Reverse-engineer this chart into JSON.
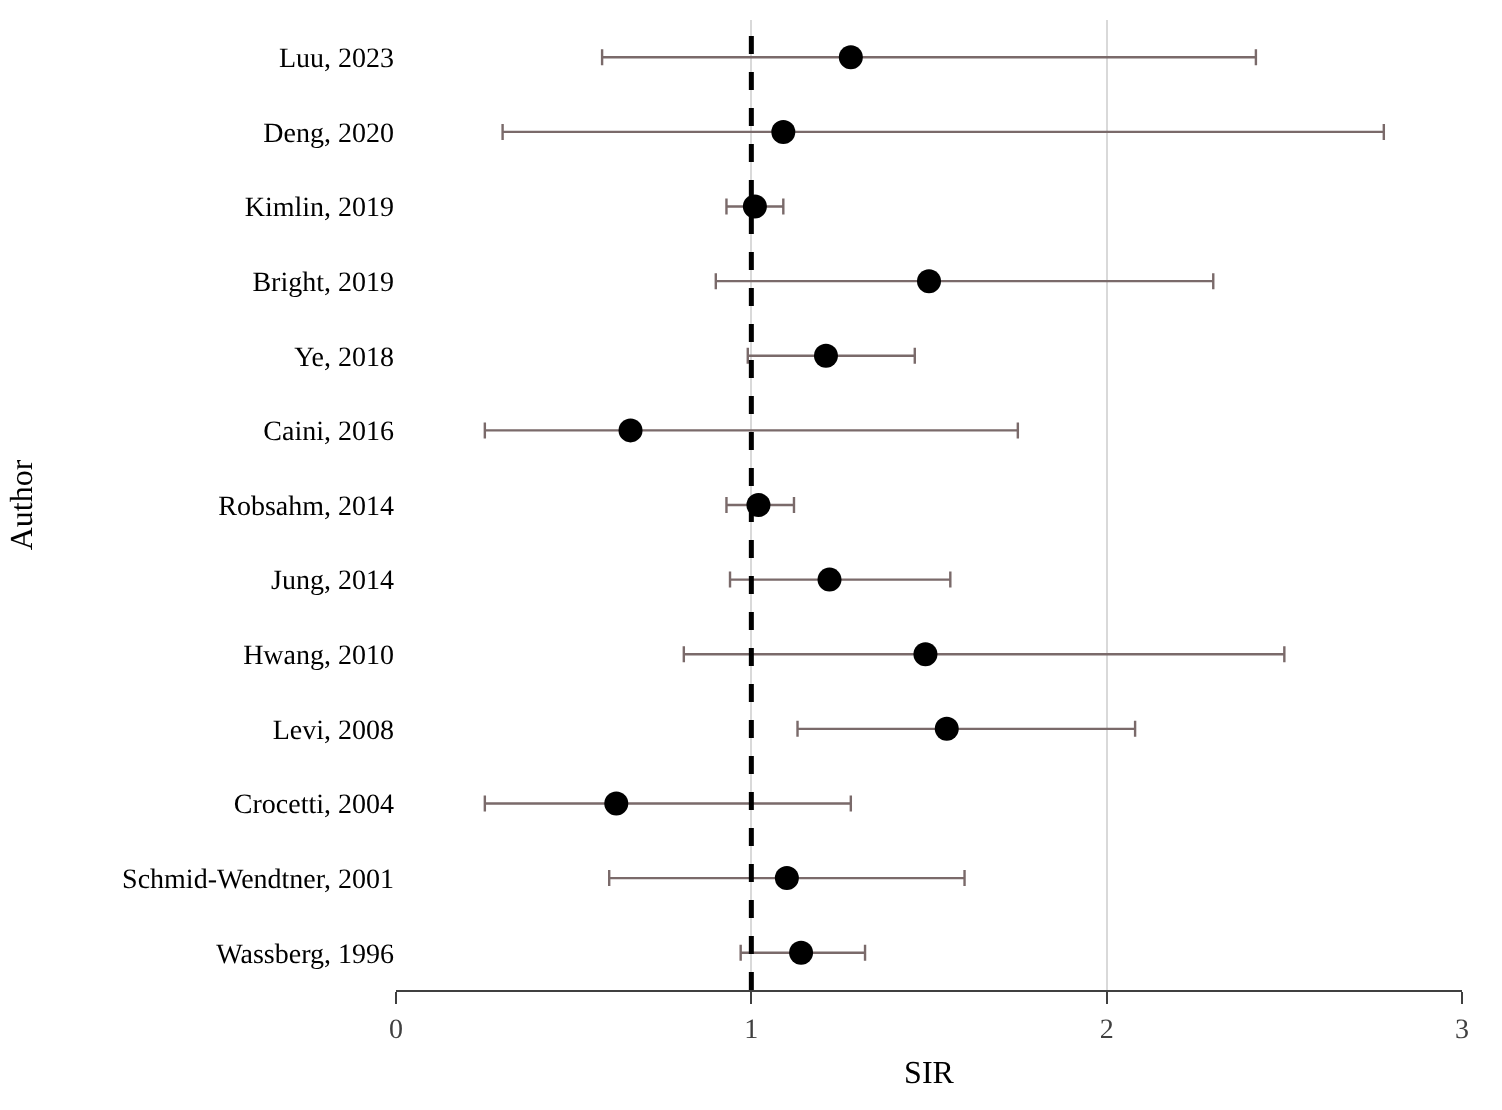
{
  "chart_data": {
    "type": "scatter",
    "orientation": "horizontal",
    "xlabel": "SIR",
    "ylabel": "Author",
    "categories": [
      "Luu, 2023",
      "Deng, 2020",
      "Kimlin, 2019",
      "Bright, 2019",
      "Ye, 2018",
      "Caini, 2016",
      "Robsahm, 2014",
      "Jung, 2014",
      "Hwang, 2010",
      "Levi, 2008",
      "Crocetti, 2004",
      "Schmid-Wendtner, 2001",
      "Wassberg, 1996"
    ],
    "series": [
      {
        "color": "#000000",
        "values": [
          1.28,
          1.09,
          1.01,
          1.5,
          1.21,
          0.66,
          1.02,
          1.22,
          1.49,
          1.55,
          0.62,
          1.1,
          1.14
        ],
        "errors": [
          [
            0.58,
            2.42
          ],
          [
            0.3,
            2.78
          ],
          [
            0.93,
            1.09
          ],
          [
            0.9,
            2.3
          ],
          [
            0.99,
            1.46
          ],
          [
            0.25,
            1.75
          ],
          [
            0.93,
            1.12
          ],
          [
            0.94,
            1.56
          ],
          [
            0.81,
            2.5
          ],
          [
            1.13,
            2.08
          ],
          [
            0.25,
            1.28
          ],
          [
            0.6,
            1.6
          ],
          [
            0.97,
            1.32
          ]
        ]
      }
    ],
    "xlim": [
      0,
      3
    ],
    "xticks": [
      0,
      1,
      2,
      3
    ],
    "grid": "x",
    "marker": "circle",
    "ref_lines": [
      {
        "axis": "x",
        "value": 1,
        "color": "#000000",
        "line_style": "dashed"
      }
    ]
  }
}
